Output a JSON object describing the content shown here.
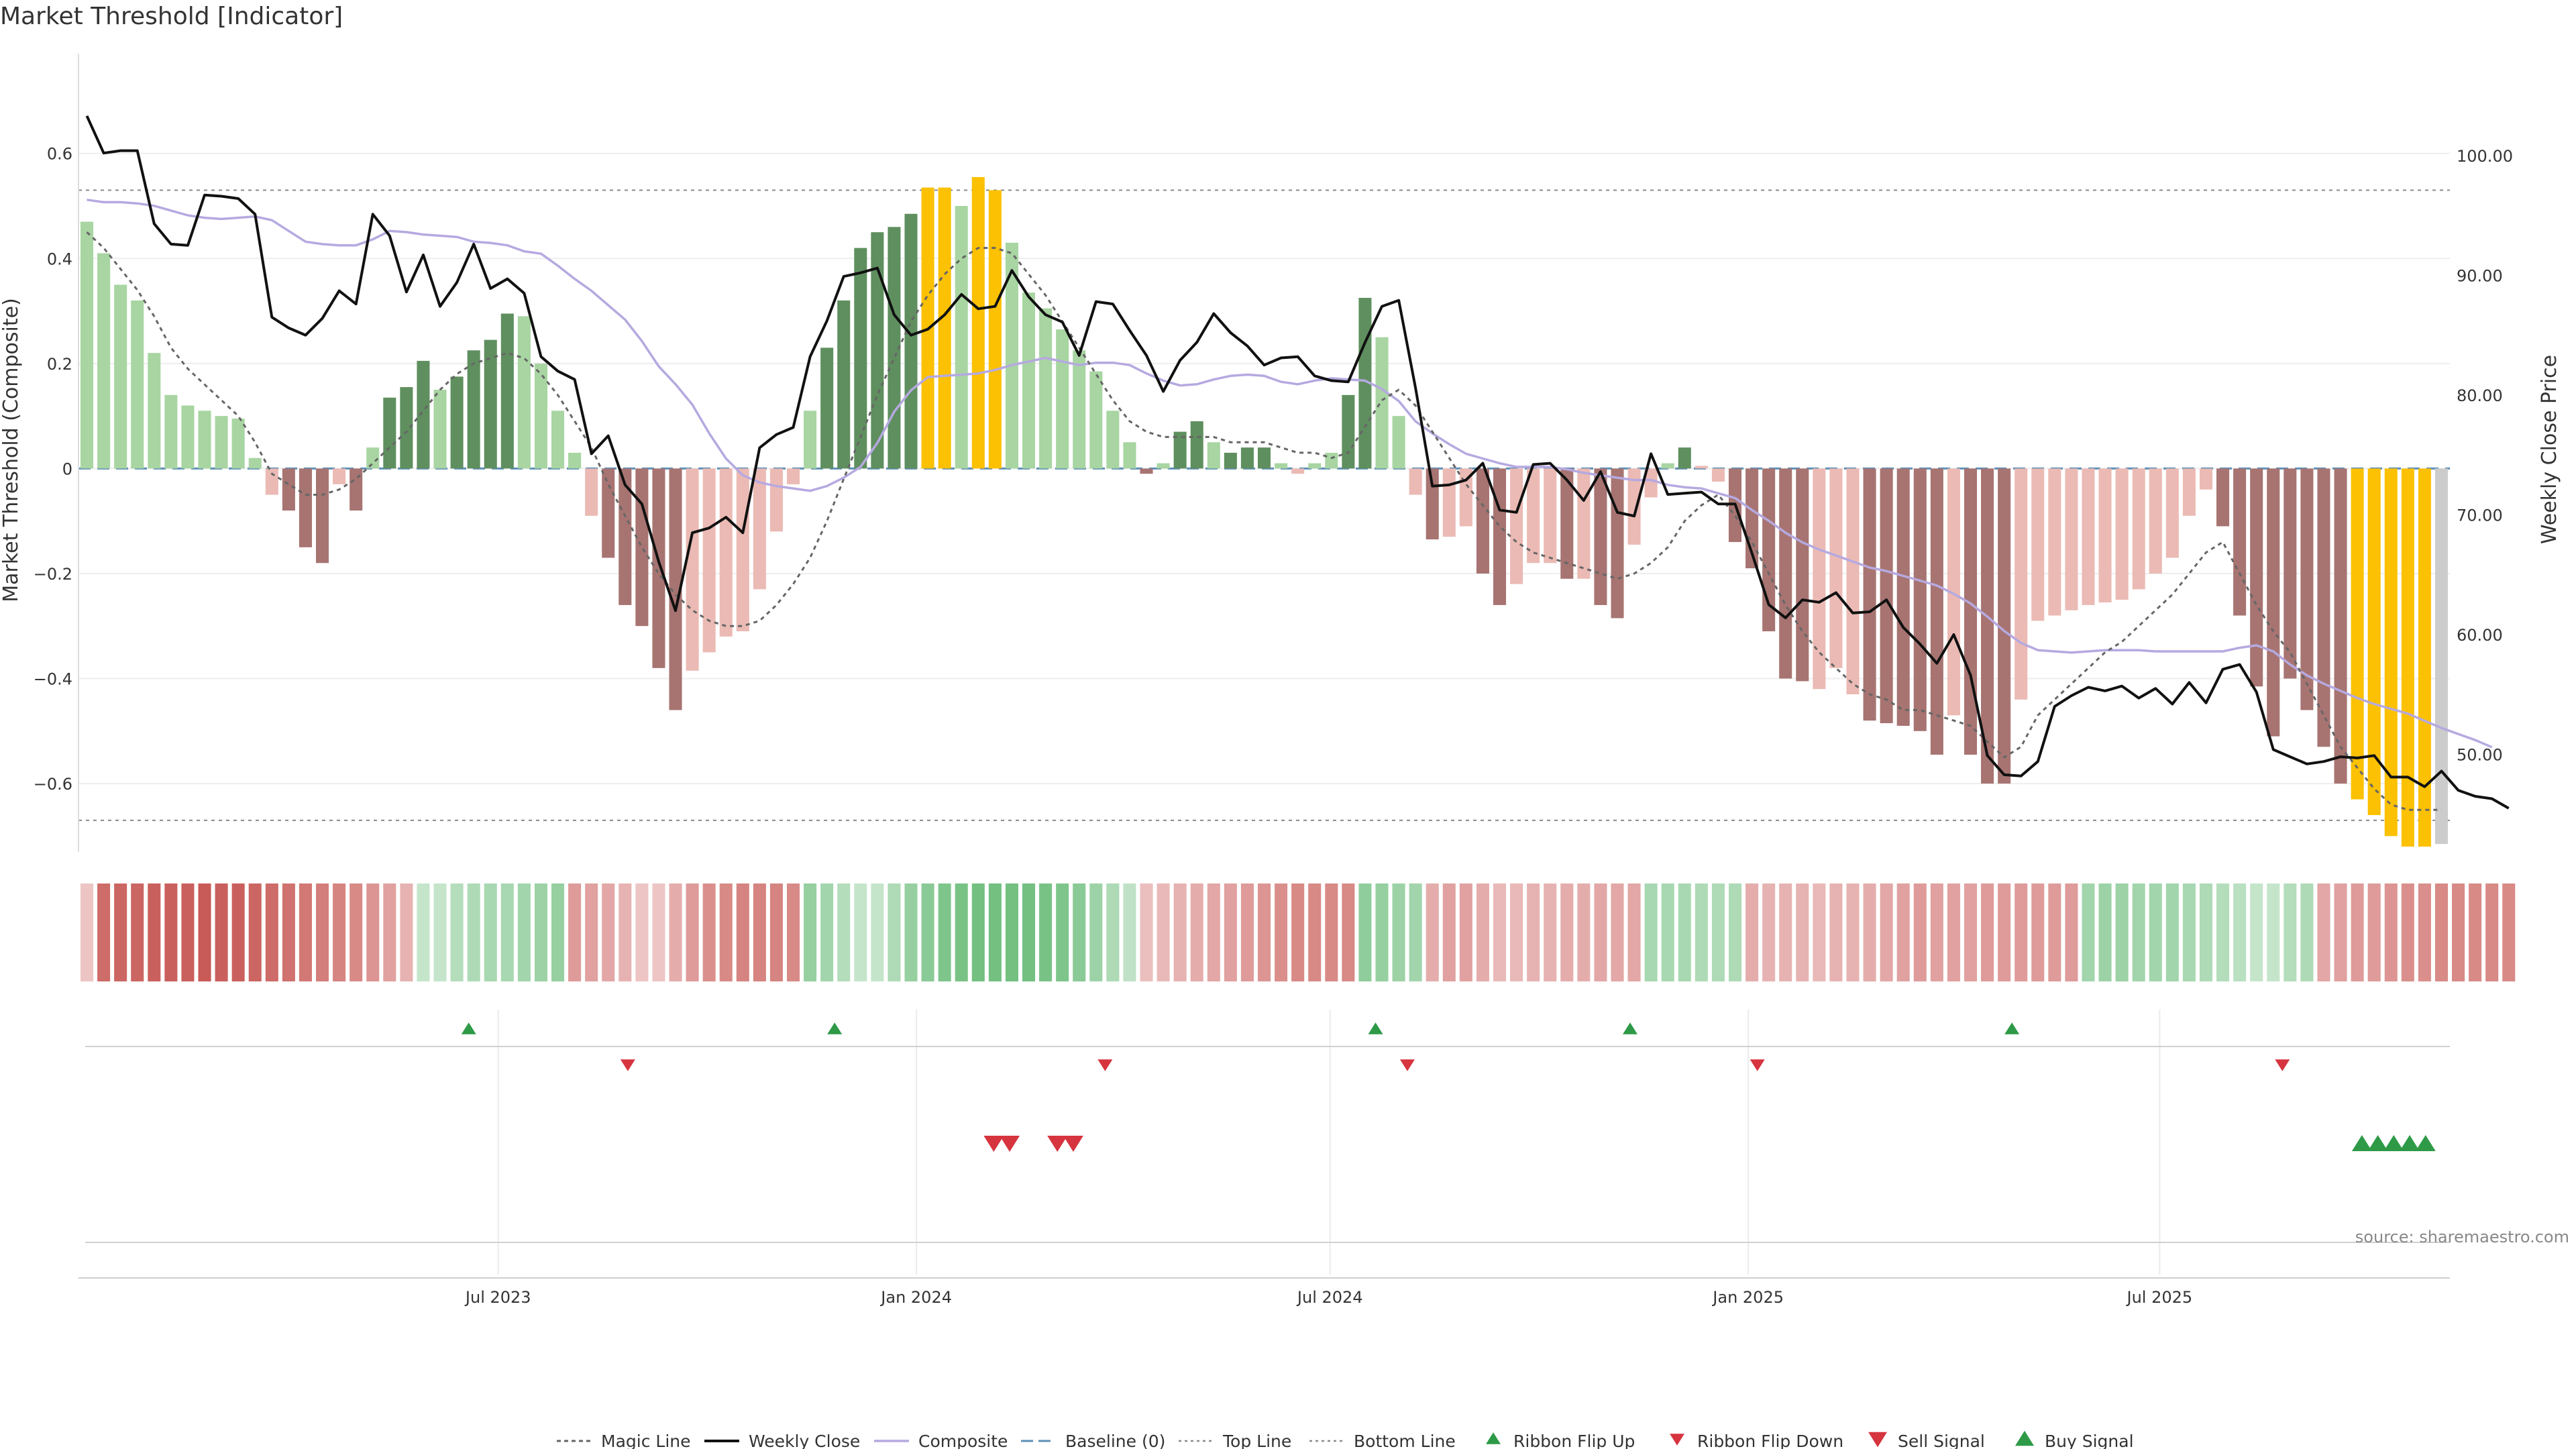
{
  "title": "Market Threshold [Indicator]",
  "source": "source: sharemaestro.com",
  "colors": {
    "light_green": "#a8d5a2",
    "dark_green": "#5f8f5f",
    "light_red": "#ebbab4",
    "dark_red": "#a77471",
    "gold": "#fbc102",
    "composite": "#b6a9e0",
    "close": "#111111",
    "magic": "#666666",
    "baseline": "#5e8fb5",
    "flip_up": "#2e9a47",
    "flip_down": "#d6343f",
    "ribbon_red": "#c85a57",
    "ribbon_green": "#5bb56c"
  },
  "chart_data": {
    "type": "bar",
    "title": "Market Threshold [Indicator]",
    "ylabel": "Market Threshold (Composite)",
    "y2label": "Weekly Close Price",
    "ylim": [
      -0.72,
      0.79
    ],
    "y2lim": [
      42.3,
      108.5
    ],
    "yticks": [
      0.6,
      0.4,
      0.2,
      0,
      -0.2,
      -0.4,
      -0.6
    ],
    "ytick_labels": [
      "0.6",
      "0.4",
      "0.2",
      "0",
      "−0.2",
      "−0.4",
      "−0.6"
    ],
    "y2ticks": [
      100,
      90,
      80,
      70,
      60,
      50
    ],
    "y2tick_labels": [
      "100.00",
      "90.00",
      "80.00",
      "70.00",
      "60.00",
      "50.00"
    ],
    "x_start": "2023-01-01",
    "x_end": "2025-11-02",
    "xticks": [
      "2023-07-01",
      "2024-01-01",
      "2024-07-01",
      "2025-01-01",
      "2025-07-01"
    ],
    "xtick_labels": [
      "Jul 2023",
      "Jan 2024",
      "Jul 2024",
      "Jan 2025",
      "Jul 2025"
    ],
    "top_line": 0.53,
    "bottom_line": -0.67,
    "baseline": 0,
    "composite_values": [
      0.47,
      0.41,
      0.35,
      0.32,
      0.22,
      0.14,
      0.12,
      0.11,
      0.1,
      0.095,
      0.02,
      -0.05,
      -0.08,
      -0.15,
      -0.18,
      -0.03,
      -0.08,
      0.04,
      0.135,
      0.155,
      0.205,
      0.15,
      0.175,
      0.225,
      0.245,
      0.295,
      0.29,
      0.2,
      0.11,
      0.03,
      -0.09,
      -0.17,
      -0.26,
      -0.3,
      -0.38,
      -0.46,
      -0.385,
      -0.35,
      -0.32,
      -0.31,
      -0.23,
      -0.12,
      -0.03,
      0.11,
      0.23,
      0.32,
      0.42,
      0.45,
      0.46,
      0.485,
      0.535,
      0.535,
      0.5,
      0.555,
      0.53,
      0.43,
      0.335,
      0.305,
      0.265,
      0.225,
      0.185,
      0.11,
      0.05,
      -0.01,
      0.01,
      0.07,
      0.09,
      0.05,
      0.03,
      0.04,
      0.04,
      0.01,
      -0.01,
      0.01,
      0.03,
      0.14,
      0.325,
      0.25,
      0.1,
      -0.05,
      -0.135,
      -0.13,
      -0.11,
      -0.2,
      -0.26,
      -0.22,
      -0.18,
      -0.18,
      -0.21,
      -0.21,
      -0.26,
      -0.285,
      -0.145,
      -0.055,
      0.01,
      0.04,
      0.005,
      -0.025,
      -0.14,
      -0.19,
      -0.31,
      -0.4,
      -0.405,
      -0.42,
      -0.38,
      -0.43,
      -0.48,
      -0.485,
      -0.49,
      -0.5,
      -0.545,
      -0.47,
      -0.545,
      -0.6,
      -0.6,
      -0.44,
      -0.29,
      -0.28,
      -0.27,
      -0.26,
      -0.255,
      -0.25,
      -0.23,
      -0.2,
      -0.17,
      -0.09,
      -0.04,
      -0.11,
      -0.28,
      -0.415,
      -0.51,
      -0.4,
      -0.46,
      -0.53,
      -0.6,
      -0.63,
      -0.66,
      -0.7,
      -0.72,
      -0.72,
      -0.715
    ],
    "composite_color_keys": [
      "light_green",
      "light_green",
      "light_green",
      "light_green",
      "light_green",
      "light_green",
      "light_green",
      "light_green",
      "light_green",
      "light_green",
      "light_green",
      "light_red",
      "dark_red",
      "dark_red",
      "dark_red",
      "light_red",
      "dark_red",
      "light_green",
      "dark_green",
      "dark_green",
      "dark_green",
      "light_green",
      "dark_green",
      "dark_green",
      "dark_green",
      "dark_green",
      "light_green",
      "light_green",
      "light_green",
      "light_green",
      "light_red",
      "dark_red",
      "dark_red",
      "dark_red",
      "dark_red",
      "dark_red",
      "light_red",
      "light_red",
      "light_red",
      "light_red",
      "light_red",
      "light_red",
      "light_red",
      "light_green",
      "dark_green",
      "dark_green",
      "dark_green",
      "dark_green",
      "dark_green",
      "dark_green",
      "gold",
      "gold",
      "light_green",
      "gold",
      "gold",
      "light_green",
      "light_green",
      "light_green",
      "light_green",
      "light_green",
      "light_green",
      "light_green",
      "light_green",
      "dark_red",
      "light_green",
      "dark_green",
      "dark_green",
      "light_green",
      "dark_green",
      "dark_green",
      "dark_green",
      "light_green",
      "light_red",
      "light_green",
      "light_green",
      "dark_green",
      "dark_green",
      "light_green",
      "light_green",
      "light_red",
      "dark_red",
      "light_red",
      "light_red",
      "dark_red",
      "dark_red",
      "light_red",
      "light_red",
      "light_red",
      "dark_red",
      "light_red",
      "dark_red",
      "dark_red",
      "light_red",
      "light_red",
      "light_green",
      "dark_green",
      "light_red",
      "light_red",
      "dark_red",
      "dark_red",
      "dark_red",
      "dark_red",
      "dark_red",
      "light_red",
      "light_red",
      "light_red",
      "dark_red",
      "dark_red",
      "dark_red",
      "dark_red",
      "dark_red",
      "light_red",
      "dark_red",
      "dark_red",
      "dark_red",
      "light_red",
      "light_red",
      "light_red",
      "light_red",
      "light_red",
      "light_red",
      "light_red",
      "light_red",
      "light_red",
      "light_red",
      "light_red",
      "light_red",
      "dark_red",
      "dark_red",
      "dark_red",
      "dark_red",
      "dark_red",
      "dark_red",
      "dark_red",
      "dark_red",
      "gold",
      "gold",
      "gold",
      "gold",
      "gold"
    ],
    "series": [
      {
        "name": "Magic Line",
        "values": [
          0.45,
          0.42,
          0.38,
          0.34,
          0.29,
          0.23,
          0.19,
          0.16,
          0.13,
          0.1,
          0.05,
          -0.01,
          -0.03,
          -0.05,
          -0.05,
          -0.04,
          -0.02,
          0.01,
          0.04,
          0.07,
          0.11,
          0.15,
          0.18,
          0.2,
          0.21,
          0.22,
          0.21,
          0.18,
          0.14,
          0.09,
          0.04,
          -0.03,
          -0.09,
          -0.15,
          -0.2,
          -0.24,
          -0.27,
          -0.29,
          -0.3,
          -0.3,
          -0.29,
          -0.26,
          -0.22,
          -0.17,
          -0.1,
          -0.02,
          0.06,
          0.14,
          0.21,
          0.28,
          0.33,
          0.37,
          0.4,
          0.42,
          0.42,
          0.41,
          0.37,
          0.33,
          0.28,
          0.23,
          0.18,
          0.13,
          0.09,
          0.07,
          0.06,
          0.06,
          0.06,
          0.06,
          0.05,
          0.05,
          0.05,
          0.04,
          0.03,
          0.03,
          0.02,
          0.03,
          0.08,
          0.13,
          0.15,
          0.12,
          0.07,
          0.02,
          -0.03,
          -0.07,
          -0.11,
          -0.14,
          -0.16,
          -0.17,
          -0.18,
          -0.19,
          -0.2,
          -0.21,
          -0.2,
          -0.18,
          -0.15,
          -0.1,
          -0.07,
          -0.05,
          -0.09,
          -0.14,
          -0.2,
          -0.26,
          -0.31,
          -0.35,
          -0.38,
          -0.41,
          -0.43,
          -0.44,
          -0.46,
          -0.46,
          -0.47,
          -0.48,
          -0.49,
          -0.52,
          -0.55,
          -0.53,
          -0.47,
          -0.44,
          -0.41,
          -0.38,
          -0.35,
          -0.33,
          -0.3,
          -0.27,
          -0.24,
          -0.2,
          -0.16,
          -0.14,
          -0.2,
          -0.26,
          -0.31,
          -0.35,
          -0.41,
          -0.47,
          -0.53,
          -0.57,
          -0.61,
          -0.64,
          -0.65,
          -0.65,
          -0.65
        ]
      },
      {
        "name": "Weekly Close",
        "values": [
          103.3,
          100.2,
          100.4,
          100.4,
          94.3,
          92.6,
          92.5,
          96.7,
          96.6,
          96.4,
          95.1,
          86.5,
          85.6,
          85,
          86.4,
          88.7,
          87.6,
          95.1,
          93.3,
          88.6,
          91.7,
          87.4,
          89.4,
          92.6,
          88.9,
          89.7,
          88.5,
          83.2,
          82,
          81.3,
          75.1,
          76.6,
          72.5,
          70.9,
          66.1,
          62,
          68.5,
          68.9,
          69.8,
          68.5,
          75.6,
          76.7,
          77.3,
          83.2,
          86.2,
          89.9,
          90.2,
          90.6,
          86.7,
          85,
          85.5,
          86.7,
          88.4,
          87.2,
          87.4,
          90.4,
          88.2,
          86.7,
          86.1,
          83.3,
          87.8,
          87.6,
          85.4,
          83.3,
          80.3,
          82.9,
          84.4,
          86.8,
          85.2,
          84.1,
          82.5,
          83.1,
          83.2,
          81.6,
          81.2,
          81.1,
          84.4,
          87.4,
          87.9,
          80.6,
          72.4,
          72.5,
          72.9,
          74.3,
          70.4,
          70.2,
          74.2,
          74.3,
          72.9,
          71.2,
          73.6,
          70.2,
          69.9,
          75.1,
          71.7,
          71.8,
          71.9,
          70.9,
          70.9,
          66.8,
          62.5,
          61.4,
          62.9,
          62.7,
          63.5,
          61.8,
          61.9,
          62.9,
          60.6,
          59.2,
          57.6,
          60,
          56.6,
          49.9,
          48.3,
          48.2,
          49.4,
          54,
          54.9,
          55.6,
          55.3,
          55.7,
          54.7,
          55.5,
          54.2,
          56,
          54.3,
          57.1,
          57.5,
          55.2,
          50.4,
          49.8,
          49.2,
          49.4,
          49.8,
          49.7,
          49.9,
          48.1,
          48.1,
          47.3,
          48.6,
          47,
          46.5,
          46.3,
          45.5
        ]
      },
      {
        "name": "Composite",
        "values": [
          96.3,
          96.1,
          96.1,
          96,
          95.8,
          95.4,
          95,
          94.8,
          94.7,
          94.8,
          94.9,
          94.6,
          93.7,
          92.8,
          92.6,
          92.5,
          92.5,
          93,
          93.7,
          93.6,
          93.4,
          93.3,
          93.2,
          92.8,
          92.7,
          92.5,
          92,
          91.8,
          90.8,
          89.7,
          88.7,
          87.5,
          86.3,
          84.5,
          82.4,
          80.9,
          79.2,
          76.8,
          74.7,
          73.3,
          72.7,
          72.4,
          72.2,
          72,
          72.4,
          73.1,
          74,
          76,
          78.6,
          80.4,
          81.5,
          81.6,
          81.7,
          81.8,
          82.1,
          82.5,
          82.8,
          83.1,
          82.8,
          82.5,
          82.7,
          82.7,
          82.5,
          81.8,
          81.2,
          80.8,
          80.9,
          81.3,
          81.6,
          81.7,
          81.6,
          81.1,
          80.9,
          81.2,
          81.4,
          81.3,
          81.2,
          80.5,
          79.5,
          77.8,
          76.8,
          75.9,
          75.1,
          74.7,
          74.3,
          74,
          74,
          74,
          73.8,
          73.5,
          73.3,
          73.1,
          72.9,
          72.9,
          72.5,
          72.3,
          72.2,
          71.8,
          71.4,
          70.4,
          69.5,
          68.5,
          67.7,
          67.1,
          66.6,
          66.1,
          65.6,
          65.3,
          64.9,
          64.5,
          64.1,
          63.4,
          62.6,
          61.5,
          60.3,
          59.3,
          58.7,
          58.6,
          58.5,
          58.6,
          58.7,
          58.7,
          58.7,
          58.6,
          58.6,
          58.6,
          58.6,
          58.6,
          58.9,
          59.1,
          58.6,
          57.5,
          56.6,
          55.9,
          55.3,
          54.7,
          54.2,
          53.8,
          53.4,
          52.8,
          52.2,
          51.7,
          51.2,
          50.6
        ]
      }
    ],
    "ribbon_values": [
      0.1,
      0.85,
      0.9,
      0.9,
      0.95,
      0.95,
      0.95,
      1,
      0.95,
      0.95,
      0.9,
      0.85,
      0.8,
      0.75,
      0.7,
      0.65,
      0.6,
      0.5,
      0.4,
      0.25,
      0.1,
      -0.1,
      -0.25,
      -0.3,
      -0.35,
      -0.35,
      -0.4,
      -0.45,
      -0.5,
      -0.45,
      -0.4,
      -0.35,
      -0.25,
      -0.1,
      0.1,
      0.3,
      0.45,
      0.55,
      0.6,
      0.65,
      0.65,
      0.65,
      0.6,
      0.5,
      0.4,
      0.25,
      0.1,
      -0.1,
      -0.3,
      -0.5,
      -0.6,
      -0.7,
      -0.75,
      -0.8,
      -0.8,
      -0.8,
      -0.8,
      -0.75,
      -0.7,
      -0.6,
      -0.45,
      -0.3,
      -0.15,
      0.15,
      0.2,
      0.25,
      0.3,
      0.35,
      0.4,
      0.45,
      0.5,
      0.55,
      0.6,
      0.6,
      0.6,
      0.6,
      0.55,
      0.5,
      0.45,
      0.4,
      -0.3,
      -0.4,
      -0.4,
      -0.3,
      -0.2,
      0.2,
      0.25,
      0.25,
      0.3,
      0.3,
      0.35,
      0.35,
      0.35,
      0.35,
      0.35,
      0.35,
      0.3,
      0.3,
      0.3,
      0.3,
      0.25,
      0.25,
      0.25,
      0.2,
      0.25,
      0.25,
      0.3,
      0.35,
      0.4,
      0.45,
      0.4,
      0.4,
      0.4,
      0.45,
      0.45,
      0.45,
      0.45,
      0.45,
      0.45,
      0.4,
      0.45,
      0.45,
      0.4,
      0.4,
      0.4,
      0.35,
      0.3,
      0.25,
      0.2,
      0.1,
      -0.1,
      -0.25,
      -0.3,
      -0.35,
      -0.4,
      -0.45,
      -0.45,
      -0.5,
      -0.55,
      -0.55,
      -0.6,
      -0.6,
      -0.6,
      -0.6,
      -0.6
    ],
    "ribbon_color_keys": [
      "ribbon_red",
      "ribbon_red",
      "ribbon_red",
      "ribbon_red",
      "ribbon_red",
      "ribbon_red",
      "ribbon_red",
      "ribbon_red",
      "ribbon_red",
      "ribbon_red",
      "ribbon_red",
      "ribbon_red",
      "ribbon_red",
      "ribbon_red",
      "ribbon_red",
      "ribbon_red",
      "ribbon_red",
      "ribbon_red",
      "ribbon_red",
      "ribbon_red",
      "ribbon_green",
      "ribbon_green",
      "ribbon_green",
      "ribbon_green",
      "ribbon_green",
      "ribbon_green",
      "ribbon_green",
      "ribbon_green",
      "ribbon_green",
      "ribbon_red",
      "ribbon_red",
      "ribbon_red",
      "ribbon_red",
      "ribbon_red",
      "ribbon_red",
      "ribbon_red",
      "ribbon_red",
      "ribbon_red",
      "ribbon_red",
      "ribbon_red",
      "ribbon_red",
      "ribbon_red",
      "ribbon_red",
      "ribbon_green",
      "ribbon_green",
      "ribbon_green",
      "ribbon_green",
      "ribbon_green",
      "ribbon_green",
      "ribbon_green",
      "ribbon_green",
      "ribbon_green",
      "ribbon_green",
      "ribbon_green",
      "ribbon_green",
      "ribbon_green",
      "ribbon_green",
      "ribbon_green",
      "ribbon_green",
      "ribbon_green",
      "ribbon_green",
      "ribbon_green",
      "ribbon_green",
      "ribbon_red",
      "ribbon_red",
      "ribbon_red",
      "ribbon_red",
      "ribbon_red",
      "ribbon_red",
      "ribbon_red",
      "ribbon_red",
      "ribbon_red",
      "ribbon_red",
      "ribbon_red",
      "ribbon_red",
      "ribbon_red",
      "ribbon_green",
      "ribbon_green",
      "ribbon_green",
      "ribbon_green",
      "ribbon_red",
      "ribbon_red",
      "ribbon_red",
      "ribbon_red",
      "ribbon_red",
      "ribbon_red",
      "ribbon_red",
      "ribbon_red",
      "ribbon_red",
      "ribbon_red",
      "ribbon_red",
      "ribbon_red",
      "ribbon_red",
      "ribbon_green",
      "ribbon_green",
      "ribbon_green",
      "ribbon_green",
      "ribbon_green",
      "ribbon_green",
      "ribbon_red",
      "ribbon_red",
      "ribbon_red",
      "ribbon_red",
      "ribbon_red",
      "ribbon_red",
      "ribbon_red",
      "ribbon_red",
      "ribbon_red",
      "ribbon_red",
      "ribbon_red",
      "ribbon_red",
      "ribbon_red",
      "ribbon_red",
      "ribbon_red",
      "ribbon_red",
      "ribbon_red",
      "ribbon_red",
      "ribbon_red",
      "ribbon_red",
      "ribbon_green",
      "ribbon_green",
      "ribbon_green",
      "ribbon_green",
      "ribbon_green",
      "ribbon_green",
      "ribbon_green",
      "ribbon_green",
      "ribbon_green",
      "ribbon_green",
      "ribbon_green",
      "ribbon_green",
      "ribbon_green",
      "ribbon_green",
      "ribbon_red",
      "ribbon_red",
      "ribbon_red",
      "ribbon_red",
      "ribbon_red",
      "ribbon_red",
      "ribbon_red",
      "ribbon_red",
      "ribbon_red",
      "ribbon_red",
      "ribbon_red",
      "ribbon_red",
      "ribbon_red"
    ],
    "ribbon_flip_up": [
      "2023-06-18",
      "2023-11-26",
      "2024-07-21",
      "2024-11-10",
      "2025-04-27"
    ],
    "ribbon_flip_down": [
      "2023-08-27",
      "2024-03-24",
      "2024-08-04",
      "2025-01-05",
      "2025-08-24"
    ],
    "sell_signals": [
      "2024-02-04",
      "2024-02-11",
      "2024-03-03",
      "2024-03-10"
    ],
    "buy_signals": [
      "2025-09-28",
      "2025-10-05",
      "2025-10-12",
      "2025-10-19",
      "2025-10-26"
    ]
  },
  "legend": [
    {
      "label": "Magic Line",
      "icon": "dotted-line-icon"
    },
    {
      "label": "Weekly Close",
      "icon": "solid-line-icon"
    },
    {
      "label": "Composite",
      "icon": "lavender-line-icon"
    },
    {
      "label": "Baseline (0)",
      "icon": "dashed-line-icon"
    },
    {
      "label": "Top Line",
      "icon": "dotted-gray-line-icon"
    },
    {
      "label": "Bottom Line",
      "icon": "dotted-gray-line-icon"
    },
    {
      "label": "Ribbon Flip Up",
      "icon": "triangle-up-icon"
    },
    {
      "label": "Ribbon Flip Down",
      "icon": "triangle-down-icon"
    },
    {
      "label": "Sell Signal",
      "icon": "triangle-down-icon"
    },
    {
      "label": "Buy Signal",
      "icon": "triangle-up-icon"
    }
  ]
}
